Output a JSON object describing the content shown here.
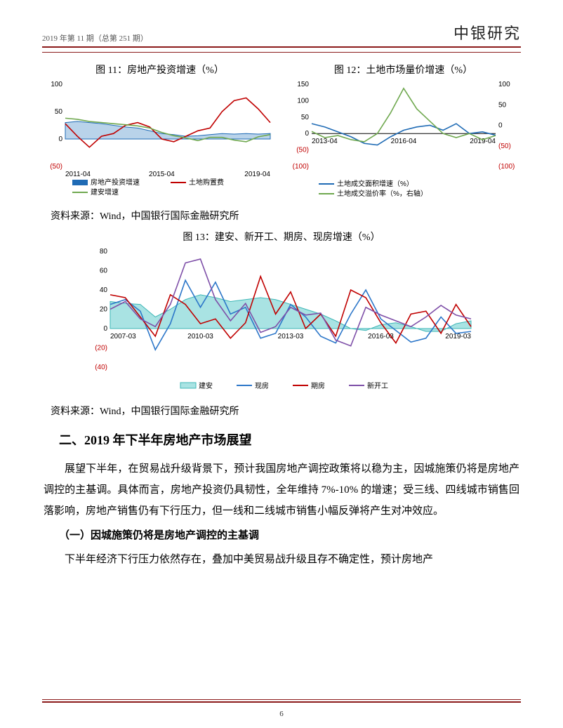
{
  "header": {
    "issue": "2019 年第 11 期（总第 251 期）",
    "brand": "中银研究"
  },
  "chart11": {
    "title": "图 11：房地产投资增速（%）",
    "type": "line-area",
    "ylim": [
      -50,
      100
    ],
    "ytick_step": 50,
    "x_labels": [
      "2011-04",
      "2015-04",
      "2019-04"
    ],
    "series": [
      {
        "name": "房地产投资增速",
        "type": "area",
        "color": "#1f6bb5",
        "fill": "#b9d3ea",
        "data": [
          30,
          32,
          30,
          28,
          25,
          22,
          20,
          15,
          10,
          8,
          5,
          6,
          8,
          10,
          9,
          10,
          9,
          10
        ]
      },
      {
        "name": "土地购置费",
        "type": "line",
        "color": "#c00000",
        "data": [
          28,
          5,
          -15,
          5,
          10,
          25,
          30,
          22,
          0,
          -5,
          5,
          15,
          20,
          50,
          70,
          75,
          55,
          30
        ]
      },
      {
        "name": "建安增速",
        "type": "line",
        "color": "#6fa84f",
        "data": [
          38,
          36,
          32,
          30,
          28,
          26,
          24,
          20,
          12,
          6,
          2,
          -3,
          3,
          3,
          -2,
          -5,
          4,
          8
        ]
      }
    ],
    "axis_color": "#000",
    "grid_color": "#e6e6e6",
    "tick_fontsize": 10,
    "label_fontsize": 10
  },
  "chart12": {
    "title": "图 12：土地市场量价增速（%）",
    "type": "line-dual-axis",
    "y1lim": [
      -100,
      150
    ],
    "y1tick_step": 50,
    "y2lim": [
      -100,
      100
    ],
    "y2tick_step": 50,
    "x_labels": [
      "2013-04",
      "2016-04",
      "2019-04"
    ],
    "series": [
      {
        "name": "土地成交面积增速（%）",
        "axis": "left",
        "color": "#1f6bb5",
        "data": [
          30,
          20,
          5,
          -10,
          -30,
          -35,
          -10,
          10,
          20,
          25,
          10,
          30,
          0,
          5,
          -5
        ]
      },
      {
        "name": "土地成交溢价率（%，右轴）",
        "axis": "right",
        "color": "#6fa84f",
        "data": [
          -15,
          -30,
          -25,
          -35,
          -40,
          -20,
          30,
          90,
          40,
          10,
          -20,
          -30,
          -20,
          -35,
          -25
        ]
      }
    ],
    "axis_color": "#000",
    "grid_color": "#e6e6e6",
    "tick_fontsize": 10,
    "label_fontsize": 10
  },
  "source1": "资料来源：Wind，中国银行国际金融研究所",
  "chart13": {
    "title": "图 13：建安、新开工、期房、现房增速（%）",
    "type": "line-area",
    "ylim": [
      -40,
      80
    ],
    "ytick_step": 20,
    "x_labels": [
      "2007-03",
      "2010-03",
      "2013-03",
      "2016-03",
      "2019-03"
    ],
    "series": [
      {
        "name": "建安",
        "type": "area",
        "color": "#3fb7b7",
        "fill": "#a9e3e3",
        "data": [
          28,
          26,
          25,
          12,
          20,
          30,
          35,
          32,
          28,
          30,
          32,
          30,
          25,
          20,
          15,
          8,
          0,
          -2,
          4,
          6,
          2,
          -3,
          -3,
          5,
          8
        ]
      },
      {
        "name": "现房",
        "type": "line",
        "color": "#2d77c9",
        "data": [
          25,
          30,
          18,
          -22,
          5,
          50,
          22,
          48,
          15,
          22,
          -10,
          -5,
          25,
          12,
          -8,
          -15,
          15,
          40,
          10,
          -2,
          -14,
          -10,
          12,
          -5,
          -3
        ]
      },
      {
        "name": "期房",
        "type": "line",
        "color": "#c00000",
        "data": [
          35,
          32,
          12,
          -8,
          35,
          25,
          5,
          10,
          -10,
          6,
          54,
          15,
          38,
          0,
          15,
          -8,
          40,
          32,
          6,
          -15,
          15,
          18,
          -5,
          25,
          2
        ]
      },
      {
        "name": "新开工",
        "type": "line",
        "color": "#7e4fa8",
        "data": [
          20,
          28,
          10,
          2,
          25,
          68,
          72,
          30,
          8,
          26,
          -4,
          2,
          22,
          14,
          16,
          -12,
          -18,
          22,
          14,
          8,
          2,
          12,
          24,
          14,
          10
        ]
      }
    ],
    "axis_color": "#000",
    "grid_color": "#e6e6e6",
    "tick_fontsize": 10,
    "label_fontsize": 10
  },
  "source2": "资料来源：Wind，中国银行国际金融研究所",
  "section": {
    "heading": "二、2019 年下半年房地产市场展望",
    "para1": "展望下半年，在贸易战升级背景下，预计我国房地产调控政策将以稳为主，因城施策仍将是房地产调控的主基调。具体而言，房地产投资仍具韧性，全年维持 7%-10% 的增速；受三线、四线城市销售回落影响，房地产销售仍有下行压力，但一线和二线城市销售小幅反弹将产生对冲效应。",
    "subheading": "（一）因城施策仍将是房地产调控的主基调",
    "para2": "下半年经济下行压力依然存在，叠加中美贸易战升级且存不确定性，预计房地产"
  },
  "page_number": "6"
}
